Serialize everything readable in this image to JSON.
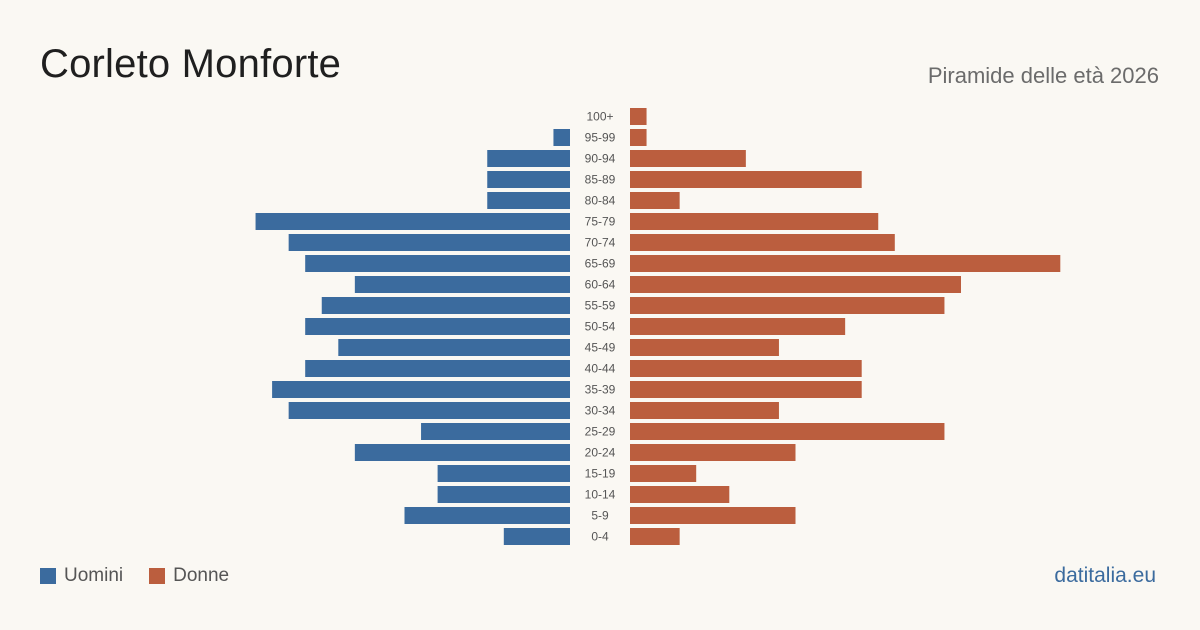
{
  "header": {
    "title": "Corleto Monforte",
    "subtitle": "Piramide delle età 2026"
  },
  "legend": {
    "men_label": "Uomini",
    "women_label": "Donne"
  },
  "footer": {
    "brand": "datitalia.eu"
  },
  "colors": {
    "men": "#3b6b9e",
    "women": "#bb5e3e",
    "background": "#faf8f3"
  },
  "chart_data": {
    "type": "bar",
    "orientation": "horizontal-pyramid",
    "categories": [
      "100+",
      "95-99",
      "90-94",
      "85-89",
      "80-84",
      "75-79",
      "70-74",
      "65-69",
      "60-64",
      "55-59",
      "50-54",
      "45-49",
      "40-44",
      "35-39",
      "30-34",
      "25-29",
      "20-24",
      "15-19",
      "10-14",
      "5-9",
      "0-4"
    ],
    "series": [
      {
        "name": "Uomini",
        "values": [
          0,
          1,
          5,
          5,
          5,
          19,
          17,
          16,
          13,
          15,
          16,
          14,
          16,
          18,
          17,
          9,
          13,
          8,
          8,
          10,
          4
        ]
      },
      {
        "name": "Donne",
        "values": [
          1,
          1,
          7,
          14,
          3,
          15,
          16,
          26,
          20,
          19,
          13,
          9,
          14,
          14,
          9,
          19,
          10,
          4,
          6,
          10,
          3
        ]
      }
    ],
    "legend_position": "bottom-left",
    "grid": false
  }
}
